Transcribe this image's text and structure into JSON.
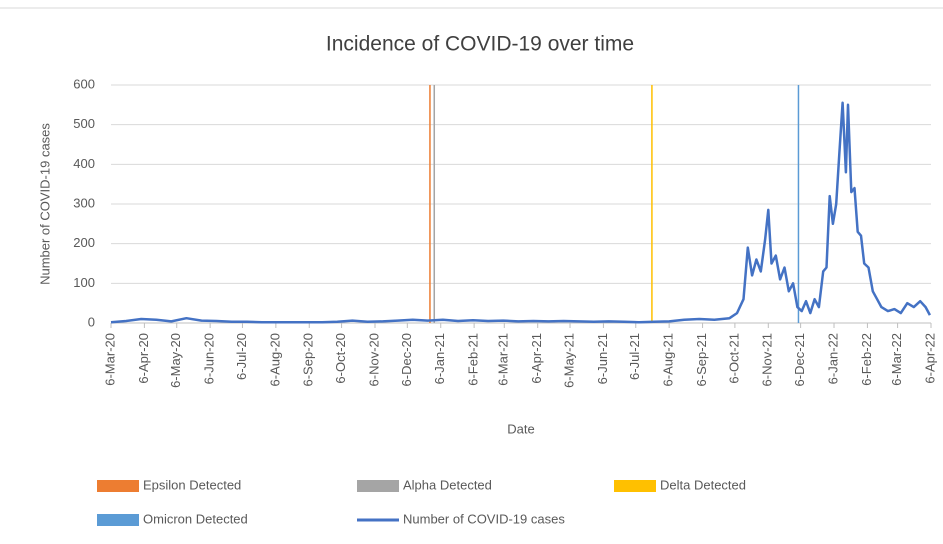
{
  "chart_data": {
    "type": "line",
    "title": "Incidence of COVID-19 over time",
    "x_label": "Date",
    "y_label": "Number of COVID-19 cases",
    "xlim": [
      "2020-03-06",
      "2022-04-06"
    ],
    "xticks": [
      {
        "value": "2020-03-06",
        "label": "6-Mar-20"
      },
      {
        "value": "2020-04-06",
        "label": "6-Apr-20"
      },
      {
        "value": "2020-05-06",
        "label": "6-May-20"
      },
      {
        "value": "2020-06-06",
        "label": "6-Jun-20"
      },
      {
        "value": "2020-07-06",
        "label": "6-Jul-20"
      },
      {
        "value": "2020-08-06",
        "label": "6-Aug-20"
      },
      {
        "value": "2020-09-06",
        "label": "6-Sep-20"
      },
      {
        "value": "2020-10-06",
        "label": "6-Oct-20"
      },
      {
        "value": "2020-11-06",
        "label": "6-Nov-20"
      },
      {
        "value": "2020-12-06",
        "label": "6-Dec-20"
      },
      {
        "value": "2021-01-06",
        "label": "6-Jan-21"
      },
      {
        "value": "2021-02-06",
        "label": "6-Feb-21"
      },
      {
        "value": "2021-03-06",
        "label": "6-Mar-21"
      },
      {
        "value": "2021-04-06",
        "label": "6-Apr-21"
      },
      {
        "value": "2021-05-06",
        "label": "6-May-21"
      },
      {
        "value": "2021-06-06",
        "label": "6-Jun-21"
      },
      {
        "value": "2021-07-06",
        "label": "6-Jul-21"
      },
      {
        "value": "2021-08-06",
        "label": "6-Aug-21"
      },
      {
        "value": "2021-09-06",
        "label": "6-Sep-21"
      },
      {
        "value": "2021-10-06",
        "label": "6-Oct-21"
      },
      {
        "value": "2021-11-06",
        "label": "6-Nov-21"
      },
      {
        "value": "2021-12-06",
        "label": "6-Dec-21"
      },
      {
        "value": "2022-01-06",
        "label": "6-Jan-22"
      },
      {
        "value": "2022-02-06",
        "label": "6-Feb-22"
      },
      {
        "value": "2022-03-06",
        "label": "6-Mar-22"
      },
      {
        "value": "2022-04-06",
        "label": "6-Apr-22"
      }
    ],
    "ylim": [
      0,
      600
    ],
    "yticks": [
      0,
      100,
      200,
      300,
      400,
      500,
      600
    ],
    "grid": true,
    "markers": [
      {
        "name": "Epsilon Detected",
        "color": "#ed7d31",
        "x": "2020-12-27"
      },
      {
        "name": "Alpha Detected",
        "color": "#a5a5a5",
        "x": "2020-12-31"
      },
      {
        "name": "Delta Detected",
        "color": "#ffc000",
        "x": "2021-07-21"
      },
      {
        "name": "Omicron Detected",
        "color": "#5b9bd5",
        "x": "2021-12-04"
      }
    ],
    "series": [
      {
        "name": "Number of COVID-19 cases",
        "color": "#4472c4",
        "x": [
          "2020-03-06",
          "2020-03-20",
          "2020-04-03",
          "2020-04-17",
          "2020-05-01",
          "2020-05-15",
          "2020-05-29",
          "2020-06-12",
          "2020-06-26",
          "2020-07-10",
          "2020-07-24",
          "2020-08-07",
          "2020-08-21",
          "2020-09-04",
          "2020-09-18",
          "2020-10-02",
          "2020-10-16",
          "2020-10-30",
          "2020-11-13",
          "2020-11-27",
          "2020-12-11",
          "2020-12-25",
          "2021-01-08",
          "2021-01-22",
          "2021-02-05",
          "2021-02-19",
          "2021-03-05",
          "2021-03-19",
          "2021-04-02",
          "2021-04-16",
          "2021-04-30",
          "2021-05-14",
          "2021-05-28",
          "2021-06-11",
          "2021-06-25",
          "2021-07-09",
          "2021-07-23",
          "2021-08-06",
          "2021-08-20",
          "2021-09-03",
          "2021-09-17",
          "2021-10-01",
          "2021-10-08",
          "2021-10-14",
          "2021-10-18",
          "2021-10-22",
          "2021-10-26",
          "2021-10-30",
          "2021-11-03",
          "2021-11-06",
          "2021-11-09",
          "2021-11-13",
          "2021-11-17",
          "2021-11-21",
          "2021-11-25",
          "2021-11-29",
          "2021-12-03",
          "2021-12-07",
          "2021-12-11",
          "2021-12-15",
          "2021-12-19",
          "2021-12-23",
          "2021-12-27",
          "2021-12-30",
          "2022-01-02",
          "2022-01-05",
          "2022-01-08",
          "2022-01-11",
          "2022-01-14",
          "2022-01-17",
          "2022-01-19",
          "2022-01-22",
          "2022-01-25",
          "2022-01-28",
          "2022-01-31",
          "2022-02-03",
          "2022-02-07",
          "2022-02-11",
          "2022-02-15",
          "2022-02-19",
          "2022-02-25",
          "2022-03-03",
          "2022-03-09",
          "2022-03-15",
          "2022-03-21",
          "2022-03-27",
          "2022-04-01",
          "2022-04-05"
        ],
        "values": [
          2,
          5,
          10,
          8,
          4,
          12,
          6,
          5,
          3,
          3,
          2,
          2,
          2,
          2,
          2,
          3,
          6,
          3,
          4,
          6,
          8,
          6,
          8,
          5,
          7,
          5,
          6,
          4,
          5,
          4,
          5,
          4,
          3,
          4,
          3,
          2,
          3,
          4,
          8,
          10,
          8,
          12,
          25,
          60,
          190,
          120,
          160,
          130,
          210,
          285,
          150,
          170,
          110,
          140,
          80,
          100,
          40,
          30,
          55,
          25,
          60,
          40,
          130,
          140,
          320,
          250,
          300,
          430,
          555,
          380,
          550,
          330,
          340,
          230,
          220,
          150,
          140,
          80,
          60,
          40,
          30,
          35,
          25,
          50,
          40,
          55,
          40,
          20
        ]
      }
    ]
  }
}
